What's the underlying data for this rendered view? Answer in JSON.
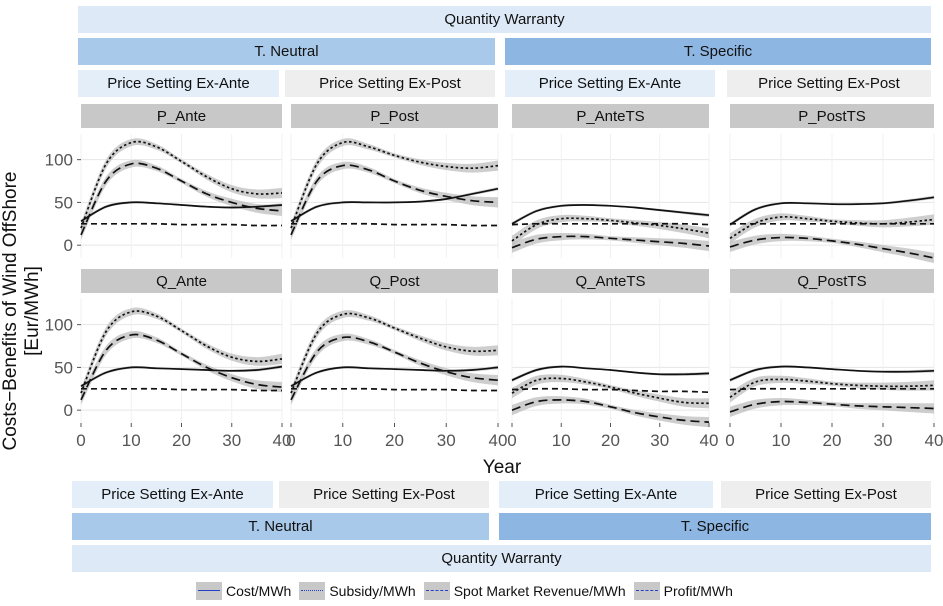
{
  "chart_data": {
    "type": "line",
    "facets_top_title": "Quantity Warranty",
    "facets_bottom_title": "Quantity Warranty",
    "column_groups": [
      "T. Neutral",
      "T. Specific"
    ],
    "column_subgroups": [
      "Price Setting Ex-Ante",
      "Price Setting Ex-Post",
      "Price Setting Ex-Ante",
      "Price Setting Ex-Post"
    ],
    "panels": [
      "P_Ante",
      "P_Post",
      "P_AnteTS",
      "P_PostTS",
      "Q_Ante",
      "Q_Post",
      "Q_AnteTS",
      "Q_PostTS"
    ],
    "xlabel": "Year",
    "ylabel": "Costs−Benefits of Wind OffShore [Eur/MWh]",
    "xlim": [
      0,
      40
    ],
    "ylim": [
      -15,
      130
    ],
    "x_ticks": [
      "0",
      "10",
      "20",
      "30",
      "40"
    ],
    "y_ticks": [
      "0",
      "50",
      "100"
    ],
    "legend": [
      "Cost/MWh",
      "Subsidy/MWh",
      "Spot Market Revenue/MWh",
      "Profit/MWh"
    ],
    "legend_position": "bottom",
    "x": [
      0,
      5,
      10,
      15,
      20,
      25,
      30,
      35,
      40
    ],
    "data": {
      "P_Ante": {
        "cost": [
          28,
          45,
          50,
          49,
          47,
          45,
          44,
          45,
          47
        ],
        "subsidy": [
          20,
          95,
          120,
          115,
          98,
          80,
          66,
          60,
          61
        ],
        "spot": [
          25,
          25,
          25,
          25,
          24,
          24,
          24,
          23,
          23
        ],
        "profit": [
          12,
          75,
          95,
          90,
          75,
          60,
          50,
          43,
          40
        ]
      },
      "P_Post": {
        "cost": [
          28,
          45,
          50,
          50,
          50,
          51,
          54,
          60,
          66
        ],
        "subsidy": [
          20,
          95,
          120,
          115,
          105,
          97,
          92,
          90,
          93
        ],
        "spot": [
          25,
          25,
          25,
          25,
          24,
          24,
          24,
          23,
          23
        ],
        "profit": [
          12,
          75,
          93,
          88,
          75,
          64,
          57,
          52,
          50
        ]
      },
      "P_AnteTS": {
        "cost": [
          25,
          40,
          46,
          47,
          46,
          44,
          41,
          38,
          35
        ],
        "subsidy": [
          5,
          24,
          31,
          31,
          29,
          26,
          23,
          19,
          14
        ],
        "spot": [
          24,
          25,
          25,
          25,
          25,
          25,
          25,
          25,
          24
        ],
        "profit": [
          -3,
          7,
          10,
          10,
          8,
          6,
          4,
          2,
          -1
        ]
      },
      "P_PostTS": {
        "cost": [
          24,
          42,
          49,
          49,
          48,
          48,
          49,
          52,
          56
        ],
        "subsidy": [
          8,
          26,
          33,
          31,
          28,
          26,
          25,
          27,
          30
        ],
        "spot": [
          25,
          25,
          25,
          25,
          25,
          25,
          25,
          25,
          25
        ],
        "profit": [
          -2,
          6,
          9,
          8,
          5,
          1,
          -4,
          -9,
          -15
        ]
      },
      "Q_Ante": {
        "cost": [
          28,
          44,
          50,
          49,
          48,
          47,
          46,
          47,
          51
        ],
        "subsidy": [
          20,
          92,
          115,
          110,
          93,
          75,
          62,
          57,
          60
        ],
        "spot": [
          25,
          25,
          25,
          25,
          24,
          24,
          24,
          23,
          23
        ],
        "profit": [
          12,
          70,
          88,
          82,
          66,
          50,
          38,
          30,
          27
        ]
      },
      "Q_Post": {
        "cost": [
          28,
          44,
          50,
          49,
          48,
          47,
          46,
          47,
          50
        ],
        "subsidy": [
          20,
          90,
          112,
          108,
          96,
          84,
          74,
          69,
          70
        ],
        "spot": [
          25,
          25,
          25,
          25,
          24,
          24,
          24,
          23,
          23
        ],
        "profit": [
          12,
          68,
          85,
          80,
          68,
          55,
          45,
          38,
          35
        ]
      },
      "Q_AnteTS": {
        "cost": [
          35,
          47,
          51,
          49,
          47,
          44,
          42,
          42,
          43
        ],
        "subsidy": [
          20,
          35,
          37,
          33,
          27,
          20,
          14,
          9,
          8
        ],
        "spot": [
          24,
          25,
          25,
          24,
          24,
          23,
          22,
          22,
          21
        ],
        "profit": [
          0,
          10,
          12,
          10,
          4,
          -3,
          -8,
          -12,
          -14
        ]
      },
      "Q_PostTS": {
        "cost": [
          35,
          47,
          51,
          50,
          48,
          46,
          45,
          45,
          46
        ],
        "subsidy": [
          15,
          33,
          36,
          34,
          31,
          29,
          28,
          28,
          29
        ],
        "spot": [
          24,
          25,
          25,
          25,
          25,
          25,
          25,
          25,
          25
        ],
        "profit": [
          -2,
          7,
          10,
          9,
          7,
          5,
          4,
          3,
          2
        ]
      }
    }
  },
  "styles": {
    "line_color": "#111111",
    "ribbon_color": "#bdbdbd",
    "panel_bg": "#ffffff",
    "grid_color": "#e6e6e6",
    "legend_line_color": "#2440c8"
  }
}
